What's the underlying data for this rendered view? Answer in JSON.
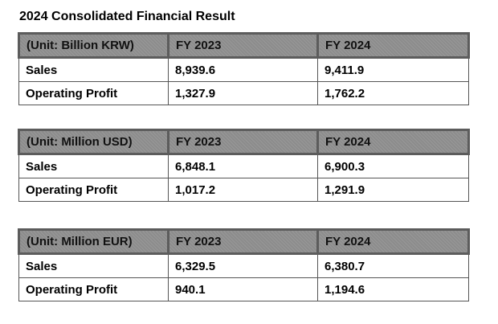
{
  "document": {
    "title": "2024 Consolidated Financial Result"
  },
  "tables": [
    {
      "unit_label": "(Unit: Billion KRW)",
      "columns": [
        "FY 2023",
        "FY 2024"
      ],
      "rows": [
        {
          "label": "Sales",
          "fy2023": "8,939.6",
          "fy2024": "9,411.9"
        },
        {
          "label": "Operating Profit",
          "fy2023": "1,327.9",
          "fy2024": "1,762.2"
        }
      ]
    },
    {
      "unit_label": "(Unit: Million USD)",
      "columns": [
        "FY 2023",
        "FY 2024"
      ],
      "rows": [
        {
          "label": "Sales",
          "fy2023": "6,848.1",
          "fy2024": "6,900.3"
        },
        {
          "label": "Operating Profit",
          "fy2023": "1,017.2",
          "fy2024": "1,291.9"
        }
      ]
    },
    {
      "unit_label": "(Unit: Million EUR)",
      "columns": [
        "FY 2023",
        "FY 2024"
      ],
      "rows": [
        {
          "label": "Sales",
          "fy2023": "6,329.5",
          "fy2024": "6,380.7"
        },
        {
          "label": "Operating Profit",
          "fy2023": "940.1",
          "fy2024": "1,194.6"
        }
      ]
    }
  ],
  "colors": {
    "header_fill": "#8c8c8c",
    "header_border": "#5c5c5c",
    "cell_border": "#555555",
    "text": "#000000",
    "background": "#ffffff"
  }
}
